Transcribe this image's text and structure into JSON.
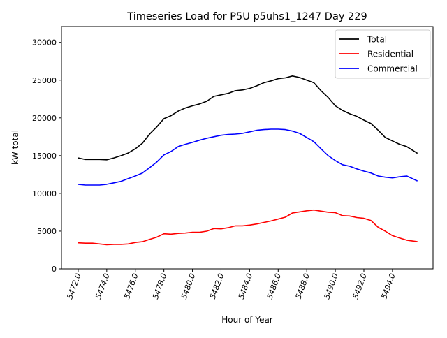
{
  "chart_data": {
    "type": "line",
    "title": "Timeseries Load for P5U p5uhs1_1247  Day 229",
    "xlabel": "Hour of Year",
    "ylabel": "kW total",
    "xlim": [
      5470.83,
      5496.84
    ],
    "ylim": [
      0,
      32100
    ],
    "grid": false,
    "legend_position": "top-right",
    "x_ticks": [
      5472,
      5474,
      5476,
      5478,
      5480,
      5482,
      5484,
      5486,
      5488,
      5490,
      5492,
      5494
    ],
    "x_tick_labels": [
      "5472.0",
      "5474.0",
      "5476.0",
      "5478.0",
      "5480.0",
      "5482.0",
      "5484.0",
      "5486.0",
      "5488.0",
      "5490.0",
      "5492.0",
      "5494.0"
    ],
    "y_ticks": [
      0,
      5000,
      10000,
      15000,
      20000,
      25000,
      30000
    ],
    "y_tick_labels": [
      "0",
      "5000",
      "10000",
      "15000",
      "20000",
      "25000",
      "30000"
    ],
    "x": [
      5472,
      5472.5,
      5473,
      5473.5,
      5474,
      5474.5,
      5475,
      5475.5,
      5476,
      5476.5,
      5477,
      5477.5,
      5478,
      5478.5,
      5479,
      5479.5,
      5480,
      5480.5,
      5481,
      5481.5,
      5482,
      5482.5,
      5483,
      5483.5,
      5484,
      5484.5,
      5485,
      5485.5,
      5486,
      5486.5,
      5487,
      5487.5,
      5488,
      5488.5,
      5489,
      5489.5,
      5490,
      5490.5,
      5491,
      5491.5,
      5492,
      5492.5,
      5493,
      5493.5,
      5494,
      5494.5,
      5495,
      5495.75
    ],
    "series": [
      {
        "name": "Total",
        "color": "#000000",
        "values": [
          14700,
          14500,
          14500,
          14500,
          14450,
          14700,
          15000,
          15350,
          15900,
          16650,
          17850,
          18800,
          19900,
          20300,
          20900,
          21300,
          21600,
          21850,
          22200,
          22850,
          23050,
          23250,
          23600,
          23700,
          23900,
          24250,
          24650,
          24900,
          25200,
          25300,
          25550,
          25350,
          25000,
          24650,
          23600,
          22700,
          21600,
          21000,
          20550,
          20200,
          19700,
          19250,
          18350,
          17400,
          16950,
          16500,
          16200,
          15300
        ]
      },
      {
        "name": "Residential",
        "color": "#ff0000",
        "values": [
          3450,
          3400,
          3400,
          3300,
          3200,
          3250,
          3250,
          3300,
          3500,
          3600,
          3900,
          4200,
          4650,
          4600,
          4700,
          4750,
          4850,
          4850,
          5000,
          5350,
          5300,
          5450,
          5700,
          5700,
          5800,
          5950,
          6150,
          6350,
          6600,
          6850,
          7400,
          7550,
          7700,
          7800,
          7650,
          7500,
          7450,
          7050,
          7000,
          6800,
          6700,
          6400,
          5500,
          5000,
          4400,
          4100,
          3800,
          3600
        ]
      },
      {
        "name": "Commercial",
        "color": "#0000ff",
        "values": [
          11200,
          11100,
          11100,
          11100,
          11200,
          11400,
          11600,
          11950,
          12300,
          12700,
          13400,
          14150,
          15100,
          15550,
          16200,
          16500,
          16750,
          17050,
          17300,
          17500,
          17700,
          17800,
          17850,
          17950,
          18150,
          18350,
          18450,
          18500,
          18500,
          18450,
          18250,
          17950,
          17400,
          16850,
          15900,
          15000,
          14350,
          13800,
          13600,
          13250,
          12950,
          12700,
          12300,
          12150,
          12050,
          12200,
          12300,
          11650
        ]
      }
    ]
  }
}
